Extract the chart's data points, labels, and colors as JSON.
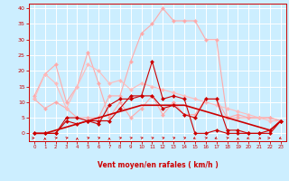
{
  "xlabel": "Vent moyen/en rafales ( km/h )",
  "background_color": "#cceeff",
  "grid_color": "#ffffff",
  "x_ticks": [
    0,
    1,
    2,
    3,
    4,
    5,
    6,
    7,
    8,
    9,
    10,
    11,
    12,
    13,
    14,
    15,
    16,
    17,
    18,
    19,
    20,
    21,
    22,
    23
  ],
  "y_ticks": [
    0,
    5,
    10,
    15,
    20,
    25,
    30,
    35,
    40
  ],
  "ylim": [
    -2.5,
    41.5
  ],
  "xlim": [
    -0.5,
    23.5
  ],
  "series": [
    {
      "x": [
        0,
        1,
        2,
        3,
        4,
        5,
        6,
        7,
        8,
        9,
        10,
        11,
        12,
        13,
        14,
        15,
        16,
        17,
        18,
        19,
        20,
        21,
        22,
        23
      ],
      "y": [
        11,
        8,
        10,
        8,
        5,
        5,
        5,
        12,
        12,
        23,
        32,
        35,
        40,
        36,
        36,
        36,
        30,
        30,
        5,
        5,
        5,
        5,
        5,
        4
      ],
      "color": "#ffaaaa",
      "linewidth": 0.8,
      "marker": "D",
      "markersize": 2.0,
      "alpha": 1.0
    },
    {
      "x": [
        0,
        1,
        2,
        3,
        4,
        5,
        6,
        7,
        8,
        9,
        10,
        11,
        12,
        13,
        14,
        15,
        16,
        17,
        18,
        19,
        20,
        21,
        22,
        23
      ],
      "y": [
        12,
        19,
        22,
        10,
        15,
        26,
        16,
        5,
        10,
        5,
        8,
        12,
        6,
        10,
        6,
        6,
        11,
        11,
        5,
        6,
        5,
        5,
        5,
        4
      ],
      "color": "#ffaaaa",
      "linewidth": 0.8,
      "marker": "D",
      "markersize": 2.0,
      "alpha": 1.0
    },
    {
      "x": [
        0,
        1,
        2,
        3,
        4,
        5,
        6,
        7,
        8,
        9,
        10,
        11,
        12,
        13,
        14,
        15,
        16,
        17,
        18,
        19,
        20,
        21,
        22,
        23
      ],
      "y": [
        11,
        19,
        16,
        8,
        15,
        22,
        20,
        16,
        17,
        14,
        16,
        15,
        14,
        13,
        12,
        11,
        10,
        9,
        8,
        7,
        6,
        5,
        4,
        4
      ],
      "color": "#ffbbbb",
      "linewidth": 0.8,
      "marker": "D",
      "markersize": 2.0,
      "alpha": 1.0
    },
    {
      "x": [
        0,
        1,
        2,
        3,
        4,
        5,
        6,
        7,
        8,
        9,
        10,
        11,
        12,
        13,
        14,
        15,
        16,
        17,
        18,
        19,
        20,
        21,
        22,
        23
      ],
      "y": [
        0,
        0,
        0,
        4,
        3,
        4,
        3,
        9,
        11,
        11,
        12,
        12,
        8,
        9,
        6,
        5,
        11,
        11,
        1,
        1,
        0,
        0,
        0,
        4
      ],
      "color": "#cc0000",
      "linewidth": 0.8,
      "marker": "D",
      "markersize": 2.0,
      "alpha": 1.0
    },
    {
      "x": [
        0,
        1,
        2,
        3,
        4,
        5,
        6,
        7,
        8,
        9,
        10,
        11,
        12,
        13,
        14,
        15,
        16,
        17,
        18,
        19,
        20,
        21,
        22,
        23
      ],
      "y": [
        0,
        0,
        0,
        5,
        5,
        4,
        4,
        4,
        8,
        12,
        12,
        23,
        11,
        12,
        11,
        0,
        0,
        1,
        0,
        0,
        0,
        0,
        1,
        4
      ],
      "color": "#cc0000",
      "linewidth": 0.8,
      "marker": "D",
      "markersize": 2.0,
      "alpha": 1.0
    },
    {
      "x": [
        0,
        1,
        2,
        3,
        4,
        5,
        6,
        7,
        8,
        9,
        10,
        11,
        12,
        13,
        14,
        15,
        16,
        17,
        18,
        19,
        20,
        21,
        22,
        23
      ],
      "y": [
        0,
        0,
        1,
        2,
        3,
        4,
        5,
        6,
        7,
        8,
        9,
        9,
        9,
        9,
        9,
        8,
        7,
        6,
        5,
        4,
        3,
        2,
        1,
        4
      ],
      "color": "#cc0000",
      "linewidth": 1.2,
      "marker": null,
      "markersize": 0,
      "alpha": 1.0
    }
  ],
  "arrow_angles": [
    90,
    0,
    45,
    45,
    0,
    45,
    45,
    0,
    45,
    45,
    45,
    45,
    45,
    45,
    45,
    225,
    45,
    225,
    45,
    0,
    225,
    135,
    90,
    225
  ]
}
